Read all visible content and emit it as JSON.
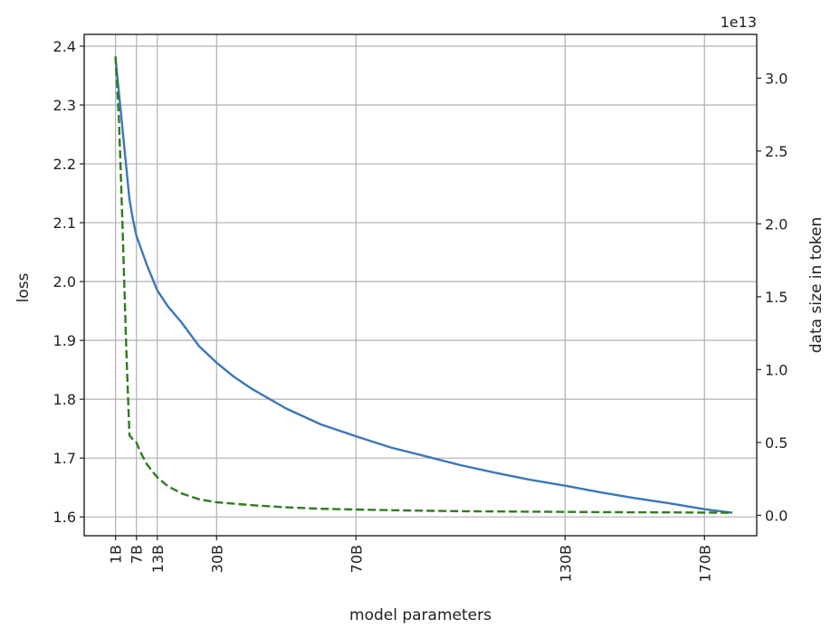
{
  "chart_data": {
    "type": "line",
    "xlabel": "model parameters",
    "ylabel_left": "loss",
    "ylabel_right": "data size in token",
    "right_axis_offset_label": "1e13",
    "x_ticks": [
      {
        "value": 1,
        "label": "1B"
      },
      {
        "value": 7,
        "label": "7B"
      },
      {
        "value": 13,
        "label": "13B"
      },
      {
        "value": 30,
        "label": "30B"
      },
      {
        "value": 70,
        "label": "70B"
      },
      {
        "value": 130,
        "label": "130B"
      },
      {
        "value": 170,
        "label": "170B"
      }
    ],
    "y_left_ticks": [
      {
        "value": 1.6,
        "label": "1.6"
      },
      {
        "value": 1.7,
        "label": "1.7"
      },
      {
        "value": 1.8,
        "label": "1.8"
      },
      {
        "value": 1.9,
        "label": "1.9"
      },
      {
        "value": 2.0,
        "label": "2.0"
      },
      {
        "value": 2.1,
        "label": "2.1"
      },
      {
        "value": 2.2,
        "label": "2.2"
      },
      {
        "value": 2.3,
        "label": "2.3"
      },
      {
        "value": 2.4,
        "label": "2.4"
      }
    ],
    "y_right_ticks": [
      {
        "value": 0.0,
        "label": "0.0"
      },
      {
        "value": 0.5,
        "label": "0.5"
      },
      {
        "value": 1.0,
        "label": "1.0"
      },
      {
        "value": 1.5,
        "label": "1.5"
      },
      {
        "value": 2.0,
        "label": "2.0"
      },
      {
        "value": 2.5,
        "label": "2.5"
      },
      {
        "value": 3.0,
        "label": "3.0"
      }
    ],
    "xlim": [
      -8,
      185
    ],
    "ylim_left": [
      1.568,
      2.42
    ],
    "ylim_right": [
      -0.14,
      3.3
    ],
    "grid": true,
    "series": [
      {
        "axis": "left",
        "style": "solid",
        "color": "#3a78b9",
        "x": [
          1,
          3,
          5,
          6,
          7,
          10,
          13,
          16,
          20,
          25,
          30,
          35,
          40,
          50,
          60,
          70,
          80,
          90,
          100,
          110,
          120,
          130,
          140,
          150,
          160,
          170,
          178
        ],
        "y": [
          2.38,
          2.26,
          2.14,
          2.105,
          2.078,
          2.028,
          1.985,
          1.958,
          1.93,
          1.89,
          1.862,
          1.838,
          1.818,
          1.784,
          1.757,
          1.737,
          1.718,
          1.703,
          1.688,
          1.675,
          1.663,
          1.653,
          1.642,
          1.632,
          1.623,
          1.613,
          1.607
        ]
      },
      {
        "axis": "right",
        "style": "dashed",
        "color": "#2e7d1e",
        "x": [
          1,
          2,
          3,
          4,
          5,
          6,
          7,
          8,
          10,
          13,
          16,
          20,
          25,
          30,
          40,
          50,
          60,
          70,
          80,
          100,
          120,
          140,
          160,
          178
        ],
        "y": [
          3.15,
          2.7,
          2.0,
          1.2,
          0.55,
          0.52,
          0.5,
          0.44,
          0.35,
          0.26,
          0.2,
          0.15,
          0.11,
          0.09,
          0.07,
          0.055,
          0.045,
          0.04,
          0.035,
          0.028,
          0.025,
          0.022,
          0.02,
          0.018
        ]
      }
    ]
  }
}
